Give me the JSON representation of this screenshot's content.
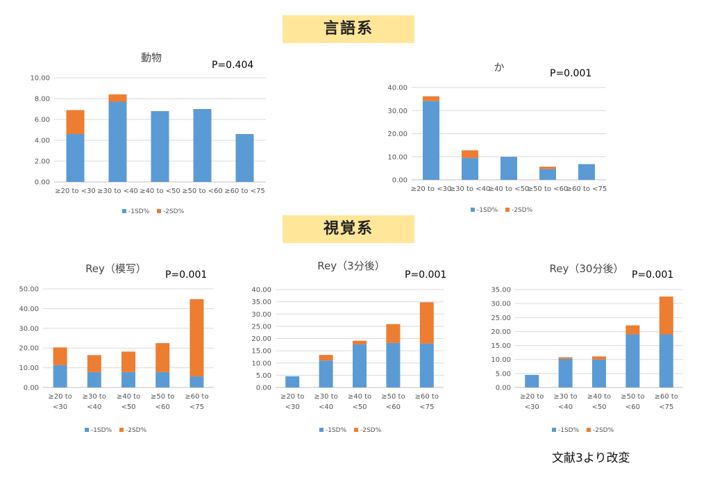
{
  "sections": {
    "language": "言語系",
    "visual": "視覚系"
  },
  "source_note": "文献3より改変",
  "colors": {
    "series1": "#5b9bd5",
    "series2": "#ed7d31",
    "grid": "#d9d9d9"
  },
  "chart_data": [
    {
      "type": "bar",
      "stacked": true,
      "title": "動物",
      "annotation": "P=0.404",
      "categories": [
        "≥20 to <30",
        "≥30 to <40",
        "≥40 to <50",
        "≥50 to <60",
        "≥60 to <75"
      ],
      "series": [
        {
          "name": "-1SD%",
          "values": [
            4.6,
            7.7,
            6.8,
            7.0,
            4.6
          ]
        },
        {
          "name": "-2SD%",
          "values": [
            2.3,
            0.7,
            0,
            0,
            0
          ]
        }
      ],
      "ylim": [
        0,
        10
      ],
      "yticks": [
        "0.00",
        "2.00",
        "4.00",
        "6.00",
        "8.00",
        "10.00"
      ],
      "legend": "bottom",
      "grid": true
    },
    {
      "type": "bar",
      "stacked": true,
      "title": "か",
      "annotation": "P=0.001",
      "categories": [
        "≥20 to <30",
        "≥30 to <40",
        "≥40 to <50",
        "≥50 to <60",
        "≥60 to <75"
      ],
      "series": [
        {
          "name": "-1SD%",
          "values": [
            34.2,
            9.5,
            10.0,
            4.7,
            6.8
          ]
        },
        {
          "name": "-2SD%",
          "values": [
            2.0,
            3.3,
            0,
            1.0,
            0
          ]
        }
      ],
      "ylim": [
        0,
        40
      ],
      "yticks": [
        "0.00",
        "10.00",
        "20.00",
        "30.00",
        "40.00"
      ],
      "legend": "bottom",
      "grid": true
    },
    {
      "type": "bar",
      "stacked": true,
      "title": "Rey（模写）",
      "annotation": "P=0.001",
      "categories": [
        "≥20 to\n<30",
        "≥30 to\n<40",
        "≥40 to\n<50",
        "≥50 to\n<60",
        "≥60 to\n<75"
      ],
      "series": [
        {
          "name": "-1SD%",
          "values": [
            11.3,
            7.8,
            7.8,
            7.8,
            5.6
          ]
        },
        {
          "name": "-2SD%",
          "values": [
            9.0,
            8.6,
            10.4,
            14.7,
            39.2
          ]
        }
      ],
      "ylim": [
        0,
        50
      ],
      "yticks": [
        "0.00",
        "10.00",
        "20.00",
        "30.00",
        "40.00",
        "50.00"
      ],
      "legend": "bottom",
      "grid": true
    },
    {
      "type": "bar",
      "stacked": true,
      "title": "Rey（3分後）",
      "annotation": "P=0.001",
      "categories": [
        "≥20 to\n<30",
        "≥30 to\n<40",
        "≥40 to\n<50",
        "≥50 to\n<60",
        "≥60 to\n<75"
      ],
      "series": [
        {
          "name": "-1SD%",
          "values": [
            4.6,
            11.0,
            17.6,
            18.2,
            17.9
          ]
        },
        {
          "name": "-2SD%",
          "values": [
            0,
            2.3,
            1.5,
            7.7,
            16.9
          ]
        }
      ],
      "ylim": [
        0,
        40
      ],
      "yticks": [
        "0.00",
        "5.00",
        "10.00",
        "15.00",
        "20.00",
        "25.00",
        "30.00",
        "35.00",
        "40.00"
      ],
      "legend": "bottom",
      "grid": true
    },
    {
      "type": "bar",
      "stacked": true,
      "title": "Rey（30分後）",
      "annotation": "P=0.001",
      "categories": [
        "≥20 to\n<30",
        "≥30 to\n<40",
        "≥40 to\n<50",
        "≥50 to\n<60",
        "≥60 to\n<75"
      ],
      "series": [
        {
          "name": "-1SD%",
          "values": [
            4.5,
            10.2,
            10.0,
            19.0,
            19.0
          ]
        },
        {
          "name": "-2SD%",
          "values": [
            0,
            0.6,
            1.1,
            3.2,
            13.5
          ]
        }
      ],
      "ylim": [
        0,
        35
      ],
      "yticks": [
        "0.00",
        "5.00",
        "10.00",
        "15.00",
        "20.00",
        "25.00",
        "30.00",
        "35.00"
      ],
      "legend": "bottom",
      "grid": true
    }
  ]
}
